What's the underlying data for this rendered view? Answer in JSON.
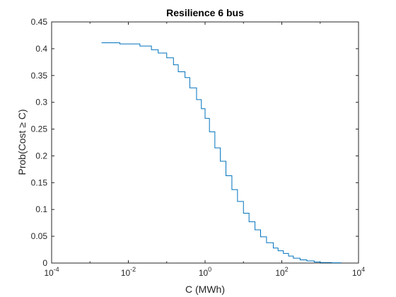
{
  "chart_data": {
    "type": "line",
    "title": "Resilience 6 bus",
    "xlabel": "C (MWh)",
    "ylabel": "Prob(Cost ≥ C)",
    "xscale": "log",
    "xlim": [
      0.0001,
      10000
    ],
    "ylim": [
      0,
      0.45
    ],
    "grid": false,
    "legend": "none",
    "x_ticks": [
      {
        "value": 0.0001,
        "base": "10",
        "exp": "-4"
      },
      {
        "value": 0.01,
        "base": "10",
        "exp": "-2"
      },
      {
        "value": 1,
        "base": "10",
        "exp": "0"
      },
      {
        "value": 100,
        "base": "10",
        "exp": "2"
      },
      {
        "value": 10000,
        "base": "10",
        "exp": "4"
      }
    ],
    "y_ticks": [
      {
        "value": 0,
        "label": "0"
      },
      {
        "value": 0.05,
        "label": "0.05"
      },
      {
        "value": 0.1,
        "label": "0.1"
      },
      {
        "value": 0.15,
        "label": "0.15"
      },
      {
        "value": 0.2,
        "label": "0.2"
      },
      {
        "value": 0.25,
        "label": "0.25"
      },
      {
        "value": 0.3,
        "label": "0.3"
      },
      {
        "value": 0.35,
        "label": "0.35"
      },
      {
        "value": 0.4,
        "label": "0.4"
      },
      {
        "value": 0.45,
        "label": "0.45"
      }
    ],
    "line_color": "#0072BD",
    "series": [
      {
        "x": [
          0.002,
          0.006,
          0.02,
          0.04,
          0.06,
          0.1,
          0.15,
          0.2,
          0.3,
          0.4,
          0.6,
          0.8,
          1.0,
          1.3,
          1.8,
          2.5,
          3.5,
          5,
          7,
          10,
          14,
          20,
          28,
          40,
          60,
          80,
          110,
          150,
          200,
          300,
          450,
          700,
          1000,
          2000,
          3500
        ],
        "y": [
          0.411,
          0.409,
          0.405,
          0.398,
          0.392,
          0.383,
          0.37,
          0.357,
          0.346,
          0.327,
          0.305,
          0.288,
          0.27,
          0.245,
          0.215,
          0.19,
          0.163,
          0.137,
          0.115,
          0.093,
          0.077,
          0.062,
          0.049,
          0.038,
          0.028,
          0.023,
          0.018,
          0.013,
          0.009,
          0.006,
          0.004,
          0.002,
          0.001,
          0.0005,
          0.0
        ]
      }
    ]
  }
}
